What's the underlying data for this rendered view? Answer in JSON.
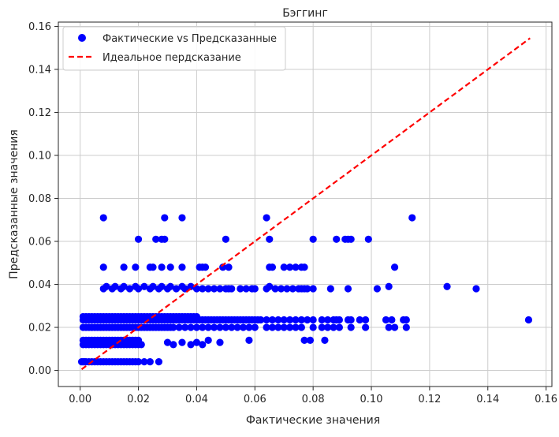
{
  "chart_data": {
    "type": "scatter",
    "title": "Бэггинг",
    "xlabel": "Фактические значения",
    "ylabel": "Предсказанные значения",
    "xlim": [
      -0.0075,
      0.162
    ],
    "ylim": [
      -0.0075,
      0.162
    ],
    "xticks": [
      "0.00",
      "0.02",
      "0.04",
      "0.06",
      "0.08",
      "0.10",
      "0.12",
      "0.14",
      "0.16"
    ],
    "yticks": [
      "0.00",
      "0.02",
      "0.04",
      "0.06",
      "0.08",
      "0.10",
      "0.12",
      "0.14",
      "0.16"
    ],
    "grid": true,
    "legend_position": "top-left",
    "colors": {
      "scatter": "#0000ff",
      "ideal_line": "#ff0000"
    },
    "series": [
      {
        "name": "Фактические vs Предсказанные",
        "kind": "scatter",
        "x": [
          0.0005,
          0.001,
          0.0015,
          0.002,
          0.003,
          0.004,
          0.005,
          0.006,
          0.007,
          0.008,
          0.009,
          0.01,
          0.011,
          0.012,
          0.013,
          0.014,
          0.015,
          0.016,
          0.017,
          0.018,
          0.019,
          0.02,
          0.022,
          0.024,
          0.027,
          0.001,
          0.002,
          0.003,
          0.004,
          0.005,
          0.006,
          0.007,
          0.008,
          0.009,
          0.01,
          0.011,
          0.012,
          0.013,
          0.014,
          0.015,
          0.016,
          0.017,
          0.018,
          0.019,
          0.02,
          0.021,
          0.001,
          0.002,
          0.003,
          0.004,
          0.005,
          0.006,
          0.007,
          0.008,
          0.009,
          0.01,
          0.011,
          0.012,
          0.013,
          0.014,
          0.015,
          0.016,
          0.017,
          0.018,
          0.019,
          0.02,
          0.001,
          0.002,
          0.003,
          0.004,
          0.005,
          0.006,
          0.007,
          0.008,
          0.009,
          0.01,
          0.011,
          0.012,
          0.013,
          0.014,
          0.015,
          0.016,
          0.017,
          0.018,
          0.019,
          0.02,
          0.021,
          0.022,
          0.023,
          0.024,
          0.025,
          0.026,
          0.027,
          0.028,
          0.029,
          0.03,
          0.031,
          0.032,
          0.033,
          0.034,
          0.035,
          0.036,
          0.037,
          0.038,
          0.039,
          0.04,
          0.041,
          0.042,
          0.043,
          0.044,
          0.045,
          0.046,
          0.047,
          0.048,
          0.049,
          0.05,
          0.051,
          0.052,
          0.053,
          0.054,
          0.055,
          0.056,
          0.057,
          0.058,
          0.059,
          0.06,
          0.061,
          0.062,
          0.064,
          0.066,
          0.068,
          0.07,
          0.072,
          0.074,
          0.076,
          0.078,
          0.08,
          0.083,
          0.085,
          0.087,
          0.088,
          0.089,
          0.092,
          0.093,
          0.096,
          0.098,
          0.105,
          0.107,
          0.111,
          0.112,
          0.154,
          0.001,
          0.002,
          0.003,
          0.004,
          0.005,
          0.006,
          0.007,
          0.008,
          0.009,
          0.01,
          0.011,
          0.012,
          0.013,
          0.014,
          0.015,
          0.016,
          0.017,
          0.018,
          0.019,
          0.02,
          0.021,
          0.022,
          0.023,
          0.024,
          0.025,
          0.026,
          0.027,
          0.028,
          0.029,
          0.03,
          0.031,
          0.032,
          0.034,
          0.036,
          0.038,
          0.04,
          0.042,
          0.044,
          0.046,
          0.048,
          0.05,
          0.052,
          0.054,
          0.056,
          0.058,
          0.06,
          0.064,
          0.066,
          0.068,
          0.07,
          0.072,
          0.074,
          0.076,
          0.08,
          0.083,
          0.085,
          0.087,
          0.089,
          0.093,
          0.098,
          0.106,
          0.108,
          0.112,
          0.001,
          0.002,
          0.003,
          0.004,
          0.005,
          0.006,
          0.007,
          0.008,
          0.009,
          0.01,
          0.011,
          0.012,
          0.013,
          0.014,
          0.015,
          0.016,
          0.017,
          0.018,
          0.019,
          0.02,
          0.021,
          0.022,
          0.023,
          0.024,
          0.025,
          0.026,
          0.027,
          0.028,
          0.029,
          0.03,
          0.031,
          0.032,
          0.033,
          0.034,
          0.035,
          0.036,
          0.037,
          0.038,
          0.039,
          0.04,
          0.03,
          0.032,
          0.035,
          0.038,
          0.04,
          0.042,
          0.044,
          0.048,
          0.058,
          0.077,
          0.079,
          0.084,
          0.008,
          0.009,
          0.011,
          0.012,
          0.014,
          0.015,
          0.017,
          0.019,
          0.02,
          0.022,
          0.024,
          0.025,
          0.027,
          0.028,
          0.03,
          0.031,
          0.033,
          0.035,
          0.036,
          0.038,
          0.04,
          0.042,
          0.044,
          0.046,
          0.048,
          0.05,
          0.051,
          0.052,
          0.055,
          0.057,
          0.059,
          0.06,
          0.064,
          0.065,
          0.067,
          0.069,
          0.071,
          0.073,
          0.075,
          0.076,
          0.077,
          0.078,
          0.08,
          0.086,
          0.092,
          0.102,
          0.106,
          0.126,
          0.136,
          0.008,
          0.015,
          0.019,
          0.024,
          0.025,
          0.028,
          0.031,
          0.035,
          0.041,
          0.042,
          0.043,
          0.049,
          0.051,
          0.065,
          0.066,
          0.07,
          0.072,
          0.074,
          0.076,
          0.077,
          0.108,
          0.02,
          0.026,
          0.028,
          0.029,
          0.05,
          0.065,
          0.08,
          0.088,
          0.091,
          0.092,
          0.093,
          0.099,
          0.008,
          0.029,
          0.035,
          0.064,
          0.114
        ],
        "y": [
          0.004,
          0.004,
          0.004,
          0.004,
          0.004,
          0.004,
          0.004,
          0.004,
          0.004,
          0.004,
          0.004,
          0.004,
          0.004,
          0.004,
          0.004,
          0.004,
          0.004,
          0.004,
          0.004,
          0.004,
          0.004,
          0.004,
          0.004,
          0.004,
          0.004,
          0.012,
          0.012,
          0.012,
          0.012,
          0.012,
          0.012,
          0.012,
          0.012,
          0.012,
          0.012,
          0.012,
          0.012,
          0.012,
          0.012,
          0.012,
          0.012,
          0.012,
          0.012,
          0.012,
          0.012,
          0.012,
          0.014,
          0.014,
          0.014,
          0.014,
          0.014,
          0.014,
          0.014,
          0.014,
          0.014,
          0.014,
          0.014,
          0.014,
          0.014,
          0.014,
          0.014,
          0.014,
          0.014,
          0.014,
          0.014,
          0.014,
          0.0235,
          0.0235,
          0.0235,
          0.0235,
          0.0235,
          0.0235,
          0.0235,
          0.0235,
          0.0235,
          0.0235,
          0.0235,
          0.0235,
          0.0235,
          0.0235,
          0.0235,
          0.0235,
          0.0235,
          0.0235,
          0.0235,
          0.0235,
          0.0235,
          0.0235,
          0.0235,
          0.0235,
          0.0235,
          0.0235,
          0.0235,
          0.0235,
          0.0235,
          0.0235,
          0.0235,
          0.0235,
          0.0235,
          0.0235,
          0.0235,
          0.0235,
          0.0235,
          0.0235,
          0.0235,
          0.0235,
          0.0235,
          0.0235,
          0.0235,
          0.0235,
          0.0235,
          0.0235,
          0.0235,
          0.0235,
          0.0235,
          0.0235,
          0.0235,
          0.0235,
          0.0235,
          0.0235,
          0.0235,
          0.0235,
          0.0235,
          0.0235,
          0.0235,
          0.0235,
          0.0235,
          0.0235,
          0.0235,
          0.0235,
          0.0235,
          0.0235,
          0.0235,
          0.0235,
          0.0235,
          0.0235,
          0.0235,
          0.0235,
          0.0235,
          0.0235,
          0.0235,
          0.0235,
          0.0235,
          0.0235,
          0.0235,
          0.0235,
          0.0235,
          0.0235,
          0.0235,
          0.0235,
          0.0235,
          0.02,
          0.02,
          0.02,
          0.02,
          0.02,
          0.02,
          0.02,
          0.02,
          0.02,
          0.02,
          0.02,
          0.02,
          0.02,
          0.02,
          0.02,
          0.02,
          0.02,
          0.02,
          0.02,
          0.02,
          0.02,
          0.02,
          0.02,
          0.02,
          0.02,
          0.02,
          0.02,
          0.02,
          0.02,
          0.02,
          0.02,
          0.02,
          0.02,
          0.02,
          0.02,
          0.02,
          0.02,
          0.02,
          0.02,
          0.02,
          0.02,
          0.02,
          0.02,
          0.02,
          0.02,
          0.02,
          0.02,
          0.02,
          0.02,
          0.02,
          0.02,
          0.02,
          0.02,
          0.02,
          0.02,
          0.02,
          0.02,
          0.02,
          0.02,
          0.02,
          0.02,
          0.02,
          0.02,
          0.025,
          0.025,
          0.025,
          0.025,
          0.025,
          0.025,
          0.025,
          0.025,
          0.025,
          0.025,
          0.025,
          0.025,
          0.025,
          0.025,
          0.025,
          0.025,
          0.025,
          0.025,
          0.025,
          0.025,
          0.025,
          0.025,
          0.025,
          0.025,
          0.025,
          0.025,
          0.025,
          0.025,
          0.025,
          0.025,
          0.025,
          0.025,
          0.025,
          0.025,
          0.025,
          0.025,
          0.025,
          0.025,
          0.025,
          0.025,
          0.013,
          0.012,
          0.013,
          0.012,
          0.013,
          0.012,
          0.014,
          0.013,
          0.014,
          0.014,
          0.014,
          0.014,
          0.038,
          0.039,
          0.038,
          0.039,
          0.038,
          0.039,
          0.038,
          0.039,
          0.038,
          0.039,
          0.038,
          0.039,
          0.038,
          0.039,
          0.038,
          0.039,
          0.038,
          0.039,
          0.038,
          0.039,
          0.038,
          0.038,
          0.038,
          0.038,
          0.038,
          0.038,
          0.038,
          0.038,
          0.038,
          0.038,
          0.038,
          0.038,
          0.038,
          0.039,
          0.038,
          0.038,
          0.038,
          0.038,
          0.038,
          0.038,
          0.038,
          0.038,
          0.038,
          0.038,
          0.038,
          0.038,
          0.039,
          0.039,
          0.038,
          0.048,
          0.048,
          0.048,
          0.048,
          0.048,
          0.048,
          0.048,
          0.048,
          0.048,
          0.048,
          0.048,
          0.048,
          0.048,
          0.048,
          0.048,
          0.048,
          0.048,
          0.048,
          0.048,
          0.048,
          0.048,
          0.061,
          0.061,
          0.061,
          0.061,
          0.061,
          0.061,
          0.061,
          0.061,
          0.061,
          0.061,
          0.061,
          0.061,
          0.071,
          0.071,
          0.071,
          0.071,
          0.071
        ]
      },
      {
        "name": "Идеальное пердсказание",
        "kind": "line",
        "style": "dashed",
        "x": [
          0.0005,
          0.1545
        ],
        "y": [
          0.0005,
          0.1545
        ]
      }
    ]
  }
}
